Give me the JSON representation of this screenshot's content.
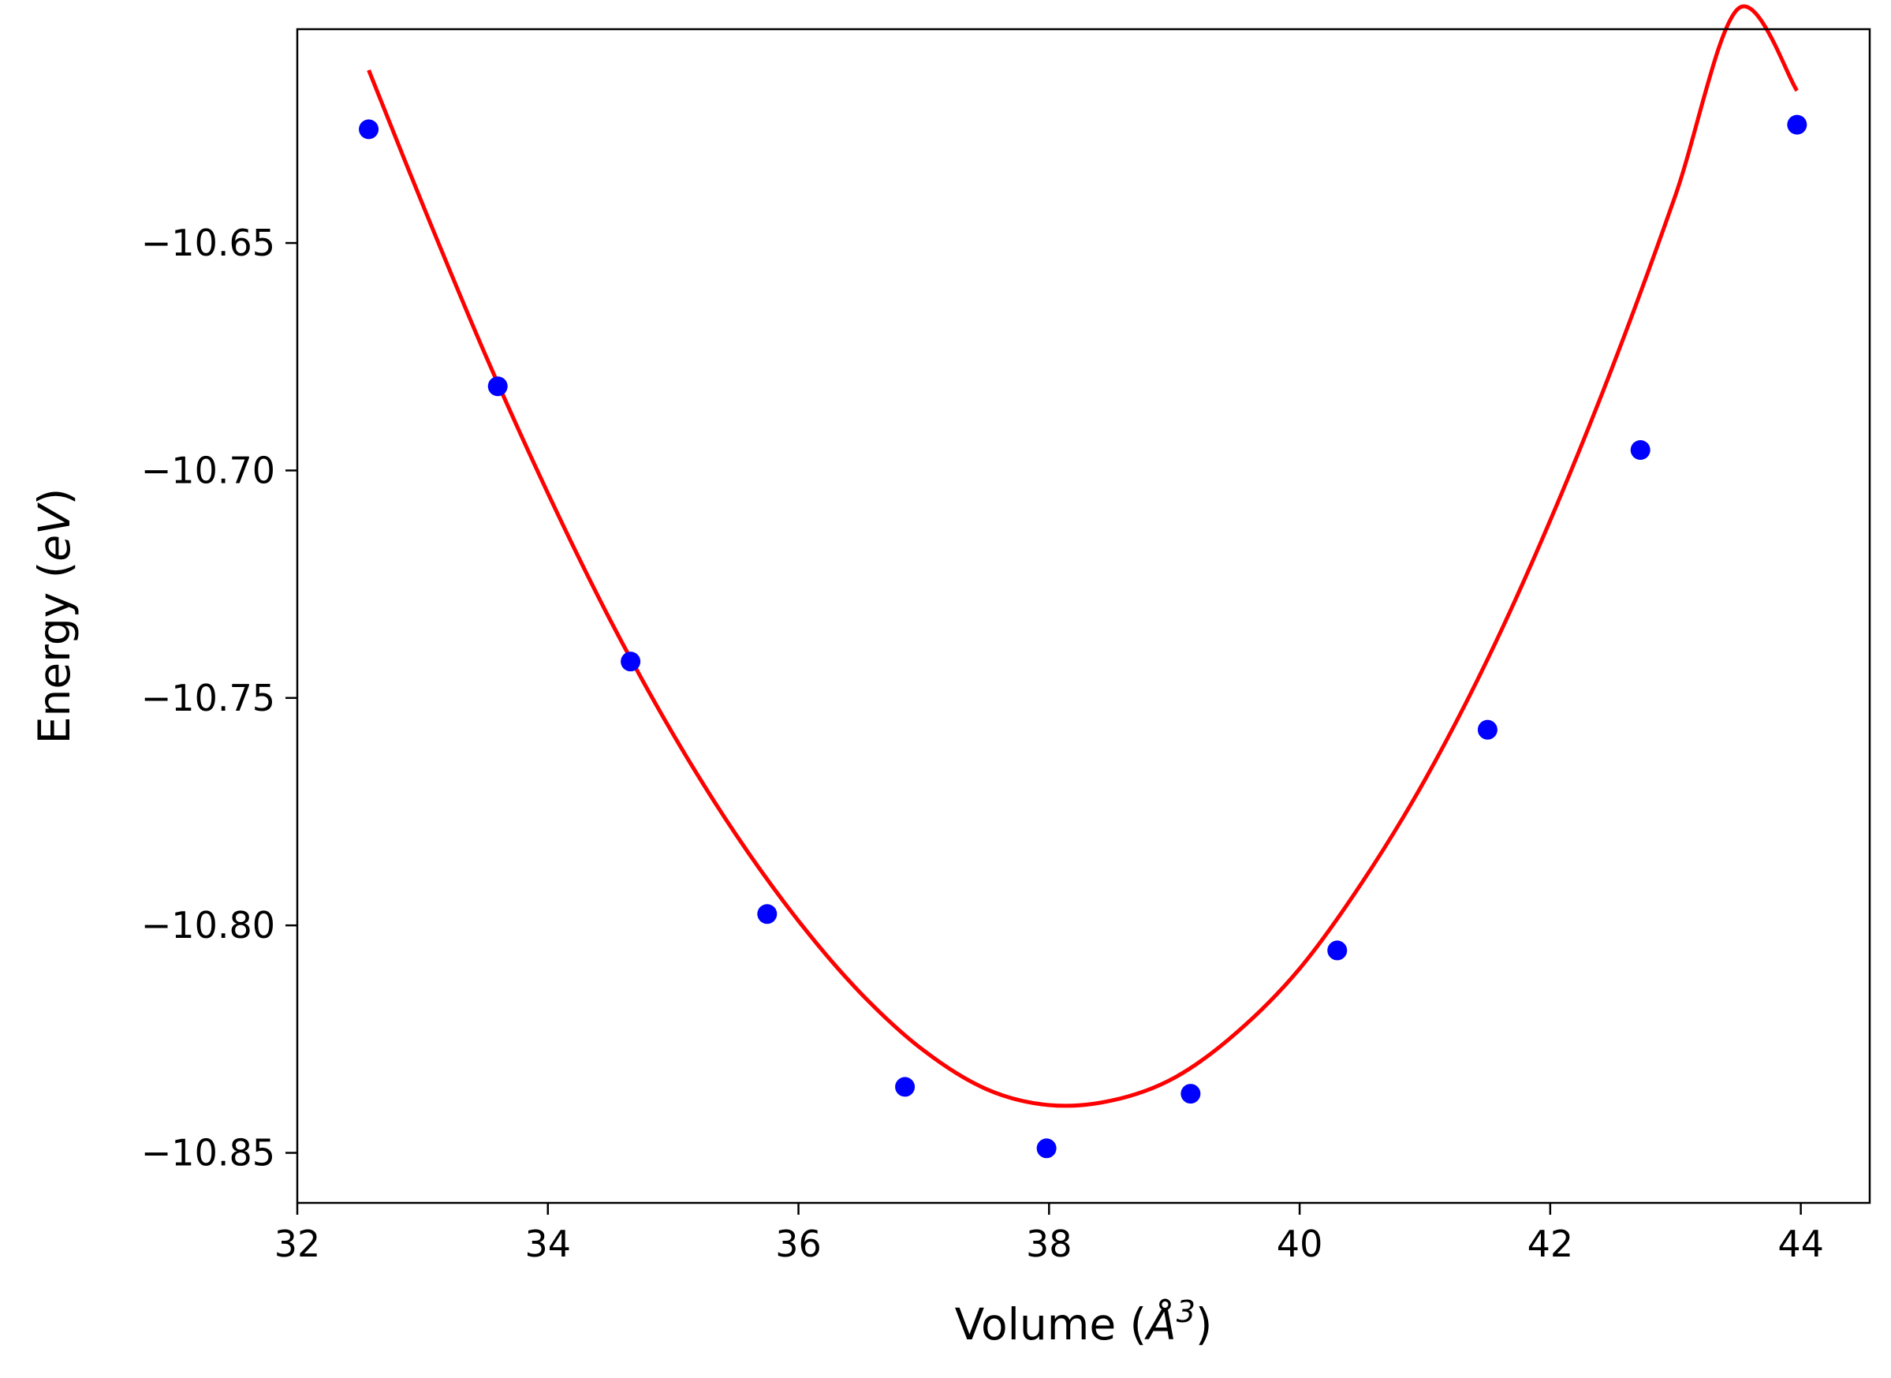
{
  "chart_data": {
    "type": "scatter",
    "title": "",
    "xlabel": "Volume (",
    "xlabel_unit": "Å",
    "xlabel_exp": "3",
    "xlabel_close": ")",
    "ylabel": "Energy (",
    "ylabel_unit": "eV",
    "ylabel_close": ")",
    "xlim": [
      32,
      44.55
    ],
    "ylim": [
      -10.861,
      -10.603
    ],
    "xticks": [
      32,
      34,
      36,
      38,
      40,
      42,
      44
    ],
    "xtick_labels": [
      "32",
      "34",
      "36",
      "38",
      "40",
      "42",
      "44"
    ],
    "yticks": [
      -10.85,
      -10.8,
      -10.75,
      -10.7,
      -10.65
    ],
    "ytick_labels": [
      "−10.85",
      "−10.80",
      "−10.75",
      "−10.70",
      "−10.65"
    ],
    "grid": false,
    "series": [
      {
        "kind": "points",
        "color": "#0000ff",
        "x": [
          32.57,
          33.6,
          34.66,
          35.75,
          36.85,
          37.98,
          39.13,
          40.3,
          41.5,
          42.72,
          43.97
        ],
        "y": [
          -10.625,
          -10.6815,
          -10.742,
          -10.7975,
          -10.8355,
          -10.849,
          -10.837,
          -10.8055,
          -10.757,
          -10.6955,
          -10.624
        ]
      },
      {
        "kind": "fit-curve",
        "color": "#ff0000",
        "x": [
          32.57,
          33.0,
          33.5,
          34.0,
          34.5,
          35.0,
          35.5,
          36.0,
          36.5,
          37.0,
          37.5,
          38.0,
          38.5,
          39.0,
          39.5,
          40.0,
          40.5,
          41.0,
          41.5,
          42.0,
          42.5,
          43.0,
          43.5,
          43.97
        ],
        "y": [
          -10.612,
          -10.6415,
          -10.6745,
          -10.705,
          -10.733,
          -10.758,
          -10.78,
          -10.799,
          -10.815,
          -10.8275,
          -10.836,
          -10.8395,
          -10.8385,
          -10.8335,
          -10.8235,
          -10.8095,
          -10.7905,
          -10.768,
          -10.7415,
          -10.711,
          -10.677,
          -10.6395,
          -10.5985,
          -10.6165
        ]
      }
    ]
  }
}
